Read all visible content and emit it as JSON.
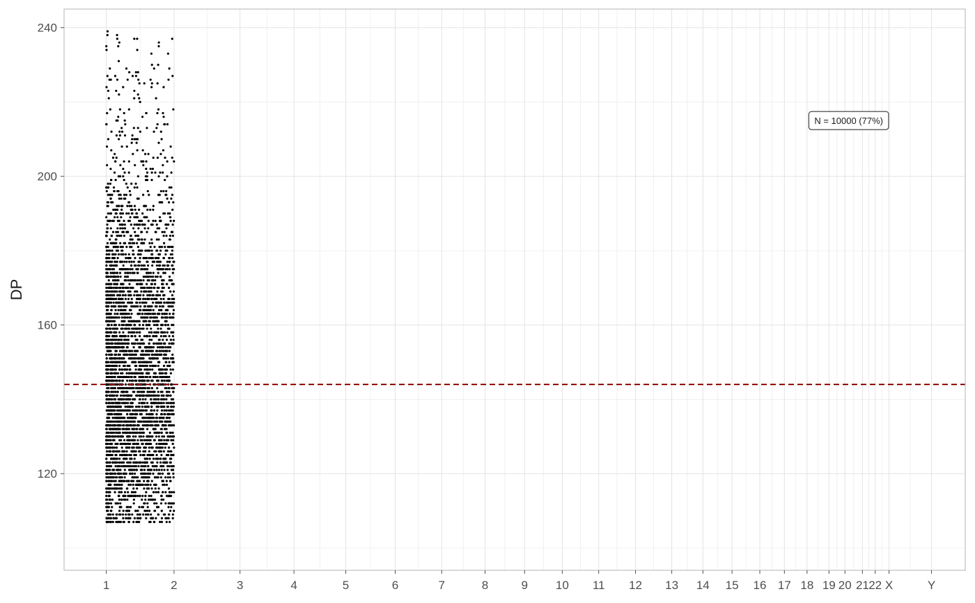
{
  "chart_data": {
    "type": "scatter",
    "title": "",
    "xlabel": "",
    "ylabel": "DP",
    "ylim": [
      94,
      245
    ],
    "x_tick_labels": [
      "1",
      "2",
      "3",
      "4",
      "5",
      "6",
      "7",
      "8",
      "9",
      "10",
      "11",
      "12",
      "13",
      "14",
      "15",
      "16",
      "17",
      "18",
      "19",
      "20",
      "21",
      "22",
      "X",
      "Y"
    ],
    "x_tick_positions_bp": [
      0,
      248956422,
      491149951,
      689445510,
      879660065,
      1061198324,
      1232004303,
      1391350276,
      1536488912,
      1674883629,
      1808681051,
      1943767673,
      2077042982,
      2191407310,
      2298451028,
      2400442217,
      2490780562,
      2574038003,
      2654411288,
      2713028904,
      2777473071,
      2824183054,
      2875001522,
      3031042417
    ],
    "xlim_bp": [
      -155000000,
      3155000000
    ],
    "y_ticks": [
      120,
      160,
      200,
      240
    ],
    "y_minor_ticks": [
      100,
      140,
      180,
      220
    ],
    "grid": true,
    "reference_line": {
      "y": 144,
      "color": "#8b0000",
      "style": "dashed"
    },
    "annotation": {
      "text": "N = 10000 (77%)",
      "x_bp": 2727000000,
      "y": 215
    },
    "points_summary": {
      "n": 10000,
      "chromosome": "1",
      "x_range_bp": [
        0,
        248956422
      ],
      "y_range": [
        107,
        239
      ],
      "y_median": 144,
      "y_step": 1,
      "color": "#000000"
    }
  }
}
